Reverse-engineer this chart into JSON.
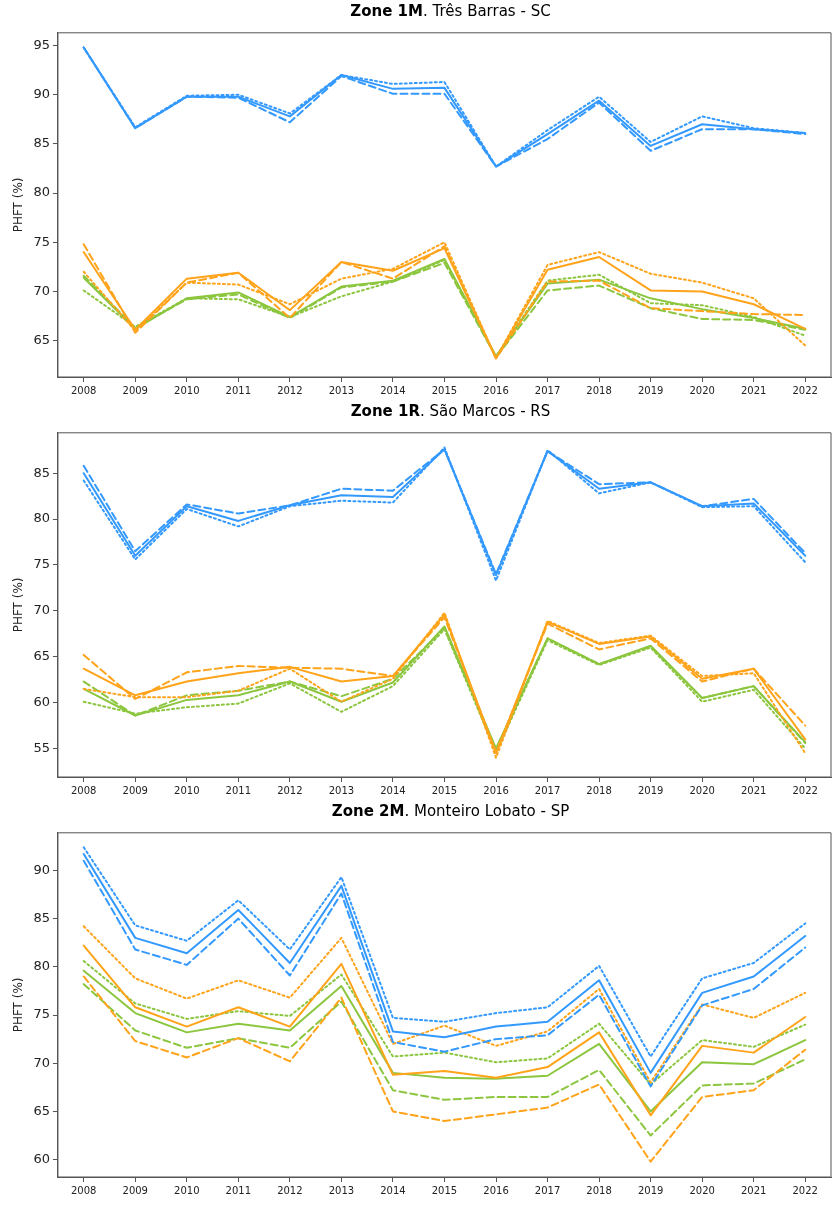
{
  "chart_data": [
    {
      "type": "line",
      "title": "Zone 1M. Três Barras - SC",
      "ylabel": "PHFT (%)",
      "categories": [
        "2008",
        "2009",
        "2010",
        "2011",
        "2012",
        "2013",
        "2014",
        "2015",
        "2016",
        "2017",
        "2018",
        "2019",
        "2020",
        "2021",
        "2022"
      ],
      "ylim": [
        61.3,
        96.3
      ],
      "yticks": [
        65,
        70,
        75,
        80,
        85,
        90,
        95
      ],
      "grid": false,
      "legend": false,
      "marker": "none",
      "series": [
        {
          "color": "#3399ff",
          "line_style": "solid",
          "values": [
            94.8,
            86.6,
            89.8,
            89.8,
            87.8,
            92.0,
            90.6,
            90.7,
            82.7,
            86.0,
            89.4,
            84.8,
            87.0,
            86.5,
            86.1
          ]
        },
        {
          "color": "#3399ff",
          "line_style": "dashed",
          "values": [
            94.8,
            86.6,
            89.8,
            89.7,
            87.2,
            91.9,
            90.1,
            90.1,
            82.7,
            85.5,
            89.2,
            84.3,
            86.5,
            86.5,
            86.0
          ]
        },
        {
          "color": "#3399ff",
          "line_style": "dotted",
          "values": [
            94.8,
            86.7,
            89.9,
            90.0,
            88.1,
            92.0,
            91.1,
            91.3,
            82.7,
            86.4,
            89.8,
            85.2,
            87.8,
            86.6,
            86.1
          ]
        },
        {
          "color": "#ffa31a",
          "line_style": "solid",
          "values": [
            74.0,
            66.1,
            71.3,
            71.9,
            68.1,
            73.0,
            72.1,
            74.4,
            63.2,
            72.2,
            73.5,
            70.1,
            70.0,
            68.7,
            66.2
          ]
        },
        {
          "color": "#ffa31a",
          "line_style": "dashed",
          "values": [
            74.8,
            65.8,
            70.9,
            71.9,
            67.3,
            73.0,
            71.3,
            74.6,
            63.2,
            71.0,
            71.1,
            68.3,
            68.0,
            67.7,
            67.6
          ]
        },
        {
          "color": "#ffa31a",
          "line_style": "dotted",
          "values": [
            72.0,
            66.0,
            70.9,
            70.7,
            68.7,
            71.3,
            72.3,
            75.0,
            63.2,
            72.7,
            74.0,
            71.8,
            70.9,
            69.3,
            64.5
          ]
        },
        {
          "color": "#8cc63f",
          "line_style": "solid",
          "values": [
            71.4,
            66.2,
            69.3,
            69.9,
            67.4,
            70.5,
            71.1,
            73.3,
            63.4,
            70.8,
            71.2,
            69.3,
            68.2,
            67.3,
            66.2
          ]
        },
        {
          "color": "#8cc63f",
          "line_style": "dashed",
          "values": [
            71.6,
            66.3,
            69.2,
            69.7,
            67.3,
            70.4,
            71.0,
            72.9,
            63.3,
            70.1,
            70.6,
            68.3,
            67.2,
            67.1,
            66.1
          ]
        },
        {
          "color": "#8cc63f",
          "line_style": "dotted",
          "values": [
            70.1,
            66.4,
            69.3,
            69.2,
            67.4,
            69.5,
            71.0,
            73.2,
            63.4,
            71.1,
            71.7,
            68.8,
            68.6,
            67.4,
            65.5
          ]
        }
      ]
    },
    {
      "type": "line",
      "title": "Zone 1R. São Marcos - RS",
      "ylabel": "PHFT (%)",
      "categories": [
        "2008",
        "2009",
        "2010",
        "2011",
        "2012",
        "2013",
        "2014",
        "2015",
        "2016",
        "2017",
        "2018",
        "2019",
        "2020",
        "2021",
        "2022"
      ],
      "ylim": [
        51.9,
        89.4
      ],
      "yticks": [
        55,
        60,
        65,
        70,
        75,
        80,
        85
      ],
      "grid": false,
      "legend": false,
      "marker": "none",
      "series": [
        {
          "color": "#3399ff",
          "line_style": "solid",
          "values": [
            85.0,
            76.0,
            81.4,
            79.8,
            81.5,
            82.6,
            82.4,
            87.6,
            73.9,
            87.4,
            83.3,
            84.0,
            81.4,
            81.7,
            76.0
          ]
        },
        {
          "color": "#3399ff",
          "line_style": "dashed",
          "values": [
            85.8,
            76.5,
            81.6,
            80.6,
            81.5,
            83.3,
            83.1,
            87.6,
            74.0,
            87.4,
            83.8,
            84.0,
            81.4,
            82.2,
            76.3
          ]
        },
        {
          "color": "#3399ff",
          "line_style": "dotted",
          "values": [
            84.2,
            75.6,
            81.1,
            79.2,
            81.4,
            82.0,
            81.8,
            87.8,
            73.3,
            87.5,
            82.8,
            84.0,
            81.3,
            81.4,
            75.3
          ]
        },
        {
          "color": "#ffa31a",
          "line_style": "solid",
          "values": [
            63.7,
            60.8,
            62.3,
            63.2,
            63.9,
            62.3,
            62.9,
            69.6,
            54.5,
            68.8,
            66.4,
            67.2,
            62.6,
            63.7,
            56.0
          ]
        },
        {
          "color": "#ffa31a",
          "line_style": "dashed",
          "values": [
            65.2,
            60.4,
            63.3,
            64.0,
            63.8,
            63.7,
            62.9,
            69.3,
            54.6,
            68.6,
            65.8,
            67.0,
            62.3,
            63.7,
            57.5
          ]
        },
        {
          "color": "#ffa31a",
          "line_style": "dotted",
          "values": [
            61.5,
            60.6,
            60.6,
            61.3,
            63.7,
            60.1,
            62.6,
            69.8,
            54.0,
            68.9,
            66.5,
            67.3,
            62.9,
            63.2,
            54.5
          ]
        },
        {
          "color": "#8cc63f",
          "line_style": "solid",
          "values": [
            61.5,
            58.6,
            60.3,
            60.8,
            62.3,
            60.1,
            62.2,
            68.3,
            55.0,
            67.0,
            64.2,
            66.2,
            60.5,
            61.8,
            55.7
          ]
        },
        {
          "color": "#8cc63f",
          "line_style": "dashed",
          "values": [
            62.3,
            58.6,
            60.8,
            61.3,
            62.3,
            60.7,
            62.6,
            68.1,
            54.9,
            67.0,
            64.2,
            66.1,
            60.5,
            61.8,
            55.6
          ]
        },
        {
          "color": "#8cc63f",
          "line_style": "dotted",
          "values": [
            60.1,
            58.8,
            59.5,
            59.9,
            62.1,
            59.0,
            61.8,
            68.0,
            54.6,
            66.8,
            64.1,
            66.0,
            60.1,
            61.4,
            55.0
          ]
        }
      ]
    },
    {
      "type": "line",
      "title": "Zone 2M. Monteiro Lobato - SP",
      "ylabel": "PHFT (%)",
      "categories": [
        "2008",
        "2009",
        "2010",
        "2011",
        "2012",
        "2013",
        "2014",
        "2015",
        "2016",
        "2017",
        "2018",
        "2019",
        "2020",
        "2021",
        "2022"
      ],
      "ylim": [
        58.2,
        93.9
      ],
      "yticks": [
        60,
        65,
        70,
        75,
        80,
        85,
        90
      ],
      "grid": false,
      "legend": false,
      "marker": "none",
      "series": [
        {
          "color": "#3399ff",
          "line_style": "solid",
          "values": [
            91.7,
            83.0,
            81.4,
            85.9,
            80.4,
            88.4,
            73.3,
            72.7,
            73.8,
            74.3,
            78.6,
            69.0,
            77.3,
            79.0,
            83.2
          ]
        },
        {
          "color": "#3399ff",
          "line_style": "dashed",
          "values": [
            91.0,
            81.8,
            80.2,
            85.0,
            79.1,
            87.6,
            72.2,
            71.2,
            72.5,
            72.9,
            77.1,
            67.6,
            76.0,
            77.7,
            82.0
          ]
        },
        {
          "color": "#3399ff",
          "line_style": "dotted",
          "values": [
            92.4,
            84.3,
            82.7,
            86.9,
            81.8,
            89.3,
            74.7,
            74.3,
            75.2,
            75.8,
            80.1,
            70.7,
            78.8,
            80.4,
            84.5
          ]
        },
        {
          "color": "#ffa31a",
          "line_style": "solid",
          "values": [
            82.2,
            75.8,
            73.8,
            75.8,
            73.8,
            80.3,
            68.8,
            69.2,
            68.5,
            69.6,
            73.2,
            64.6,
            71.8,
            71.1,
            74.8
          ]
        },
        {
          "color": "#ffa31a",
          "line_style": "dashed",
          "values": [
            79.0,
            72.3,
            70.6,
            72.6,
            70.2,
            76.8,
            65.0,
            64.0,
            64.7,
            65.4,
            67.8,
            59.8,
            66.5,
            67.2,
            71.4
          ]
        },
        {
          "color": "#ffa31a",
          "line_style": "dotted",
          "values": [
            84.2,
            78.8,
            76.7,
            78.6,
            76.8,
            83.0,
            72.0,
            73.9,
            71.8,
            73.3,
            77.7,
            68.0,
            76.1,
            74.7,
            77.3
          ]
        },
        {
          "color": "#8cc63f",
          "line_style": "solid",
          "values": [
            79.6,
            75.2,
            73.2,
            74.1,
            73.4,
            78.0,
            69.0,
            68.5,
            68.4,
            68.7,
            72.0,
            65.0,
            70.1,
            69.9,
            72.4
          ]
        },
        {
          "color": "#8cc63f",
          "line_style": "dashed",
          "values": [
            78.2,
            73.4,
            71.6,
            72.6,
            71.6,
            76.4,
            67.2,
            66.2,
            66.5,
            66.5,
            69.3,
            62.5,
            67.7,
            67.9,
            70.4
          ]
        },
        {
          "color": "#8cc63f",
          "line_style": "dotted",
          "values": [
            80.6,
            76.2,
            74.6,
            75.4,
            74.9,
            79.2,
            70.7,
            71.1,
            70.1,
            70.5,
            74.1,
            67.8,
            72.4,
            71.7,
            74.0
          ]
        }
      ]
    }
  ]
}
